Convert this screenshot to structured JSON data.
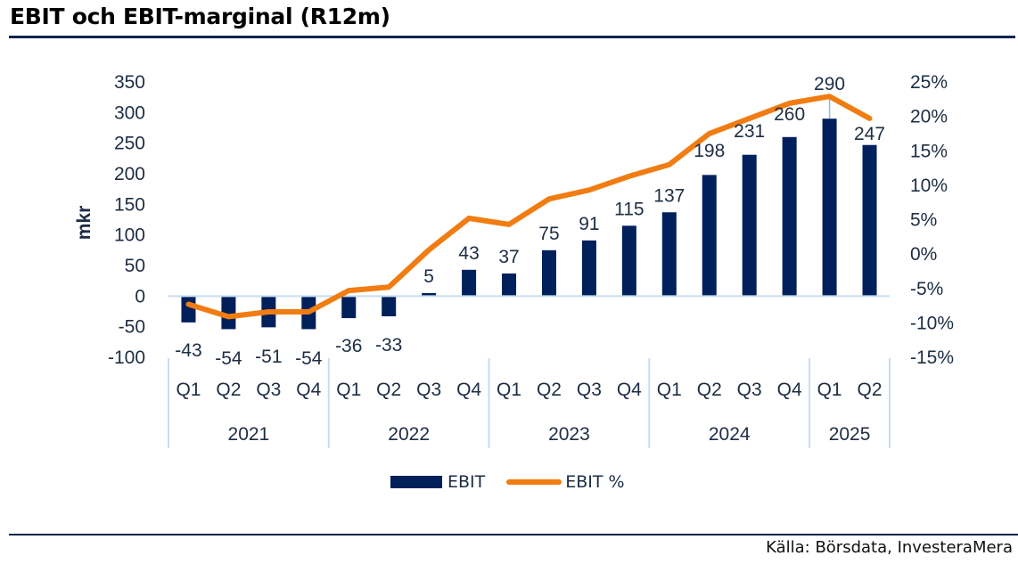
{
  "header": {
    "title": "EBIT och EBIT-marginal (R12m)"
  },
  "footer": {
    "source": "Källa: Börsdata, InvesteraMera"
  },
  "colors": {
    "bar": "#00205b",
    "line": "#f07c12",
    "axis": "#c9dcf0",
    "text": "#1d2d44",
    "rule": "#0d2350"
  },
  "chart_data": {
    "type": "bar+line",
    "title": "EBIT och EBIT-marginal (R12m)",
    "ylabel": "mkr",
    "y2label": "",
    "ylim": [
      -100,
      350
    ],
    "yticks": [
      "350",
      "300",
      "250",
      "200",
      "150",
      "100",
      "50",
      "0",
      "-50",
      "-100"
    ],
    "yticks_values": [
      350,
      300,
      250,
      200,
      150,
      100,
      50,
      0,
      -50,
      -100
    ],
    "y2lim": [
      -15,
      25
    ],
    "y2ticks": [
      "25%",
      "20%",
      "15%",
      "10%",
      "5%",
      "0%",
      "-5%",
      "-10%",
      "-15%"
    ],
    "y2ticks_values": [
      25,
      20,
      15,
      10,
      5,
      0,
      -5,
      -10,
      -15
    ],
    "categories": [
      "Q1",
      "Q2",
      "Q3",
      "Q4",
      "Q1",
      "Q2",
      "Q3",
      "Q4",
      "Q1",
      "Q2",
      "Q3",
      "Q4",
      "Q1",
      "Q2",
      "Q3",
      "Q4",
      "Q1",
      "Q2"
    ],
    "groups": [
      {
        "label": "2021",
        "count": 4
      },
      {
        "label": "2022",
        "count": 4
      },
      {
        "label": "2023",
        "count": 4
      },
      {
        "label": "2024",
        "count": 4
      },
      {
        "label": "2025",
        "count": 2
      }
    ],
    "series": [
      {
        "name": "EBIT",
        "type": "bar",
        "axis": "left",
        "values": [
          -43,
          -54,
          -51,
          -54,
          -36,
          -33,
          5,
          43,
          37,
          75,
          91,
          115,
          137,
          198,
          231,
          260,
          290,
          247
        ],
        "labels": [
          "-43",
          "-54",
          "-51",
          "-54",
          "-36",
          "-33",
          "5",
          "43",
          "37",
          "75",
          "91",
          "115",
          "137",
          "198",
          "231",
          "260",
          "290",
          "247"
        ]
      },
      {
        "name": "EBIT %",
        "type": "line",
        "axis": "right",
        "values": [
          -7.3,
          -9.1,
          -8.4,
          -8.4,
          -5.3,
          -4.8,
          0.6,
          5.2,
          4.3,
          8.0,
          9.3,
          11.3,
          13.0,
          17.5,
          19.7,
          21.9,
          22.9,
          19.7
        ]
      }
    ],
    "legend": {
      "position": "bottom",
      "entries": [
        "EBIT",
        "EBIT %"
      ]
    },
    "grid": false
  }
}
